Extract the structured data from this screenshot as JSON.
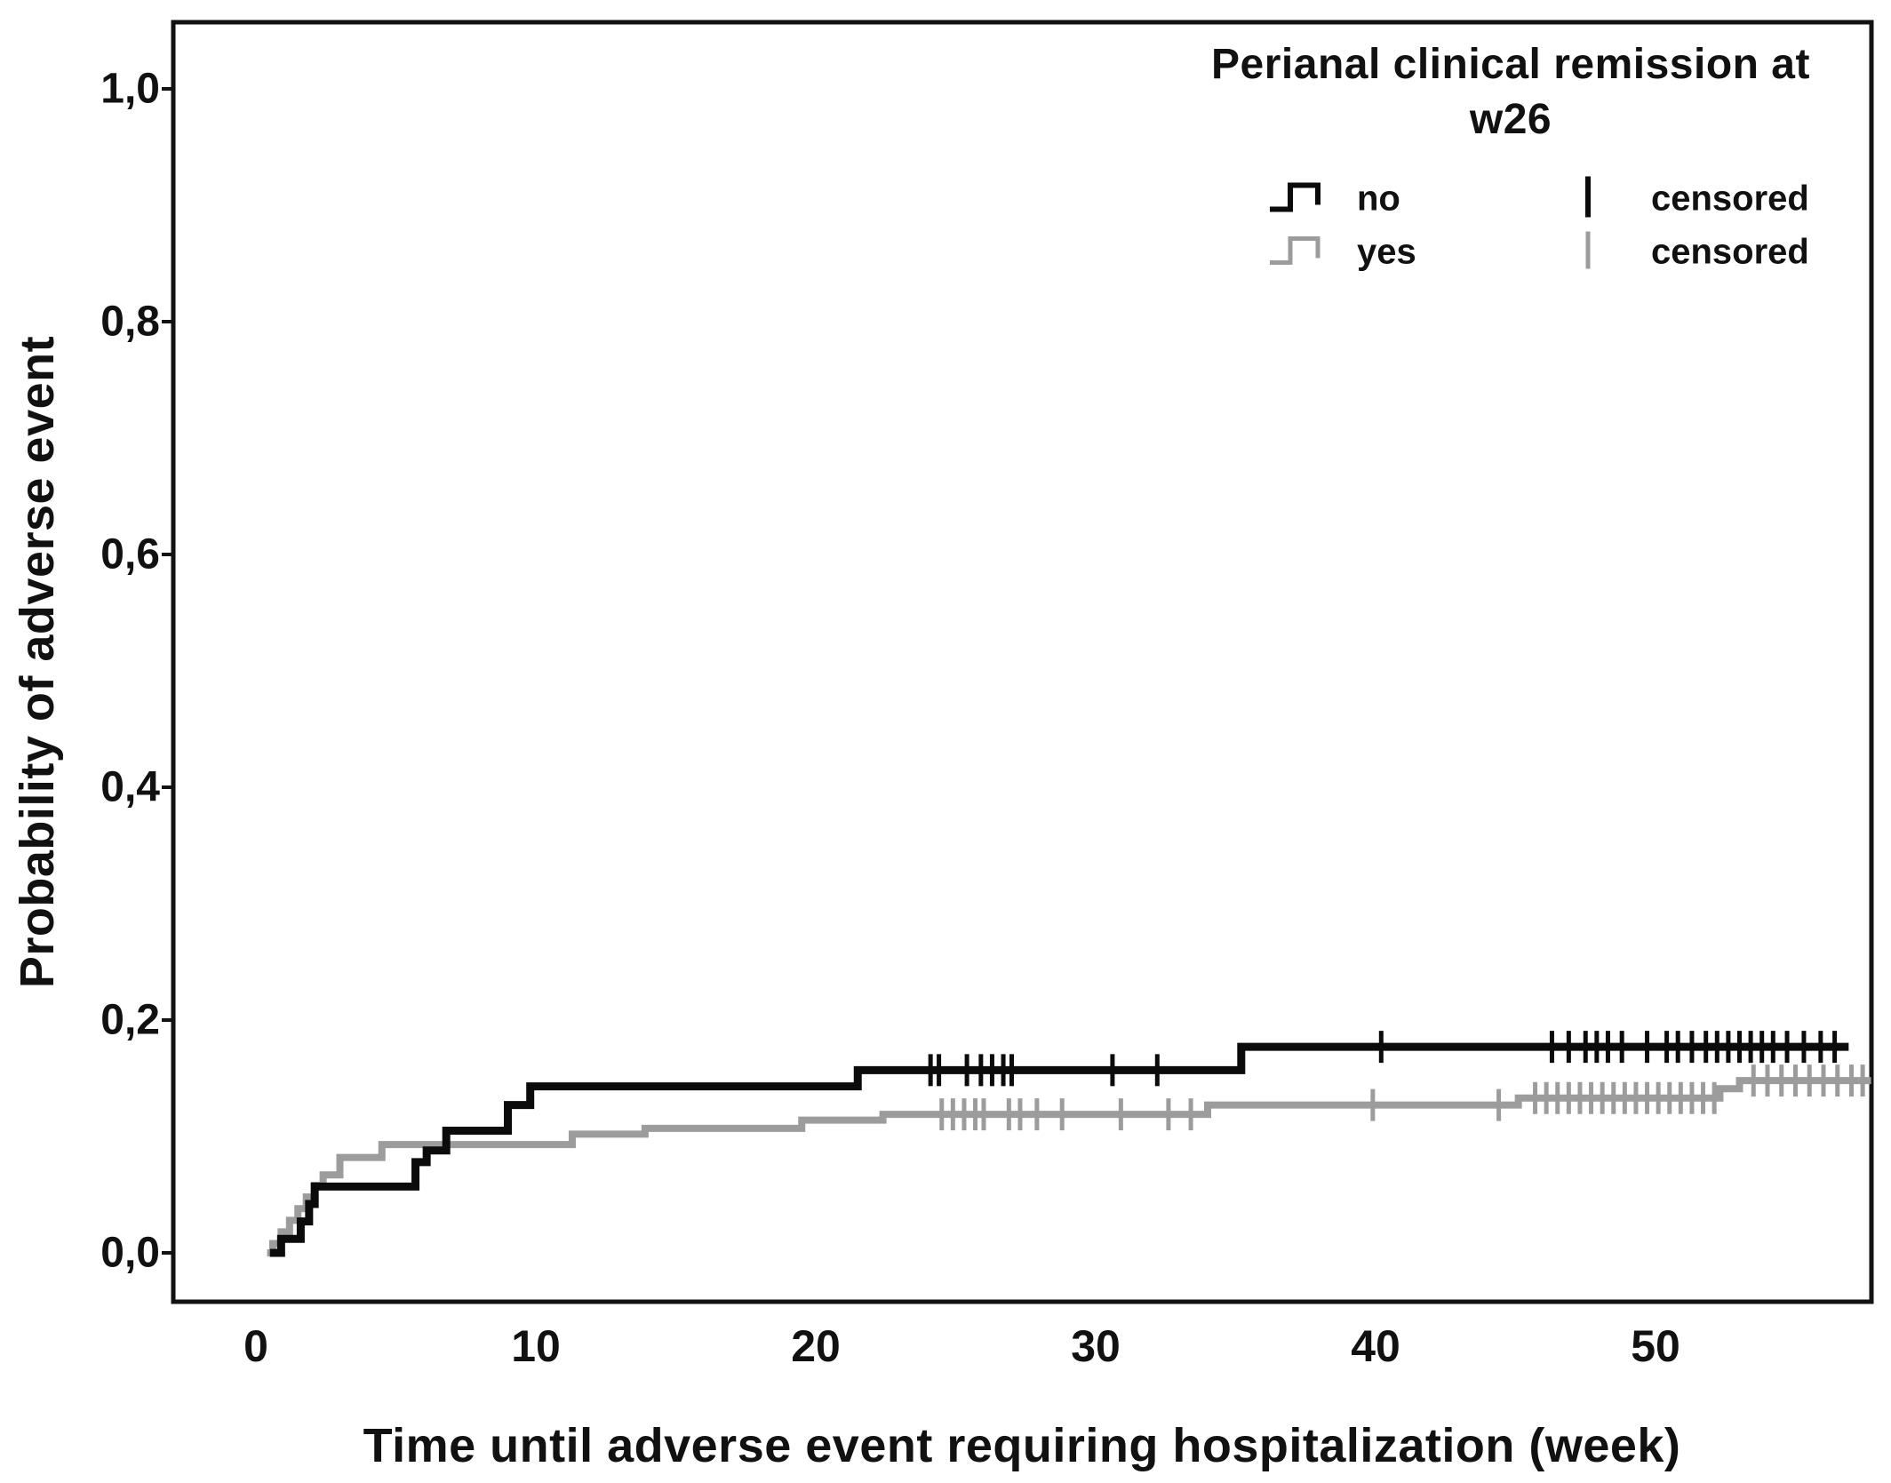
{
  "chart_data": {
    "type": "line",
    "subtype": "kaplan-meier-step-survival",
    "title": "",
    "xlabel": "Time until adverse event requiring hospitalization (week)",
    "ylabel": "Probability of adverse event",
    "xlim": [
      0,
      57.9
    ],
    "ylim": [
      0,
      1.05
    ],
    "grid": false,
    "x_tick_labels": [
      "0",
      "10",
      "20",
      "30",
      "40",
      "50"
    ],
    "x_tick_values": [
      0,
      10,
      20,
      30,
      40,
      50
    ],
    "y_tick_labels": [
      "0,0",
      "0,2",
      "0,4",
      "0,6",
      "0,8",
      "1,0"
    ],
    "y_tick_values": [
      0,
      0.2,
      0.4,
      0.6,
      0.8,
      1.0
    ],
    "legend": {
      "position": "top-right",
      "title_lines": [
        "Perianal clinical remission at",
        "w26"
      ],
      "censored_label": "censored"
    },
    "series": [
      {
        "name": "no",
        "color": "#0b0b0b",
        "line_width": 9,
        "step_points": [
          [
            0.5,
            0.0
          ],
          [
            0.9,
            0.012
          ],
          [
            1.6,
            0.027
          ],
          [
            1.9,
            0.042
          ],
          [
            2.1,
            0.057
          ],
          [
            5.7,
            0.078
          ],
          [
            6.1,
            0.088
          ],
          [
            6.8,
            0.105
          ],
          [
            9.0,
            0.127
          ],
          [
            9.8,
            0.143
          ],
          [
            21.5,
            0.157
          ],
          [
            35.2,
            0.177
          ]
        ],
        "end_week": 56.9,
        "censored_weeks": [
          24.1,
          24.4,
          25.4,
          25.9,
          26.3,
          26.7,
          27.0,
          30.6,
          32.2,
          40.2,
          46.3,
          46.9,
          47.5,
          47.9,
          48.3,
          48.8,
          49.7,
          50.4,
          50.8,
          51.3,
          51.8,
          52.2,
          52.6,
          53.0,
          53.4,
          53.8,
          54.2,
          54.7,
          55.3,
          55.9,
          56.4
        ]
      },
      {
        "name": "yes",
        "color": "#9c9c9c",
        "line_width": 8,
        "step_points": [
          [
            0.4,
            0.0
          ],
          [
            0.6,
            0.008
          ],
          [
            0.9,
            0.018
          ],
          [
            1.2,
            0.028
          ],
          [
            1.5,
            0.038
          ],
          [
            1.8,
            0.048
          ],
          [
            2.1,
            0.058
          ],
          [
            2.4,
            0.067
          ],
          [
            3.0,
            0.082
          ],
          [
            4.5,
            0.093
          ],
          [
            11.3,
            0.102
          ],
          [
            13.9,
            0.107
          ],
          [
            19.5,
            0.114
          ],
          [
            22.4,
            0.119
          ],
          [
            34.0,
            0.127
          ],
          [
            45.1,
            0.133
          ],
          [
            52.3,
            0.141
          ],
          [
            53.0,
            0.148
          ]
        ],
        "end_week": 57.7,
        "censored_weeks": [
          24.5,
          24.9,
          25.3,
          25.7,
          26.0,
          26.9,
          27.3,
          27.9,
          28.8,
          30.9,
          32.6,
          33.4,
          39.9,
          44.4,
          45.7,
          46.1,
          46.5,
          46.9,
          47.3,
          47.7,
          48.1,
          48.5,
          48.9,
          49.3,
          49.7,
          50.1,
          50.5,
          50.9,
          51.3,
          51.7,
          52.1,
          53.5,
          54.0,
          54.5,
          55.0,
          55.5,
          56.0,
          56.5,
          57.0,
          57.4
        ]
      }
    ]
  }
}
